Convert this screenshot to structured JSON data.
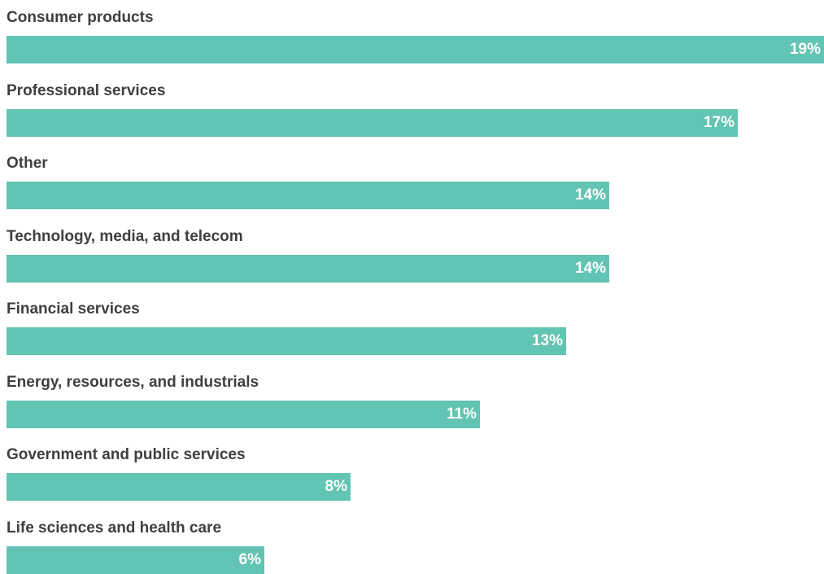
{
  "chart_data": {
    "type": "bar",
    "orientation": "horizontal",
    "categories": [
      "Consumer products",
      "Professional services",
      "Other",
      "Technology, media, and telecom",
      "Financial services",
      "Energy, resources, and industrials",
      "Government and public services",
      "Life sciences and health care"
    ],
    "values": [
      19,
      17,
      14,
      14,
      13,
      11,
      8,
      6
    ],
    "value_labels": [
      "19%",
      "17%",
      "14%",
      "14%",
      "13%",
      "11%",
      "8%",
      "6%"
    ],
    "unit": "%",
    "title": "",
    "xlabel": "",
    "ylabel": "",
    "xlim": [
      0,
      19
    ],
    "grid": false,
    "legend": "none",
    "colors": {
      "bar": "#62c4b2",
      "category_text": "#3f3f3f",
      "value_text": "#ffffff"
    }
  }
}
